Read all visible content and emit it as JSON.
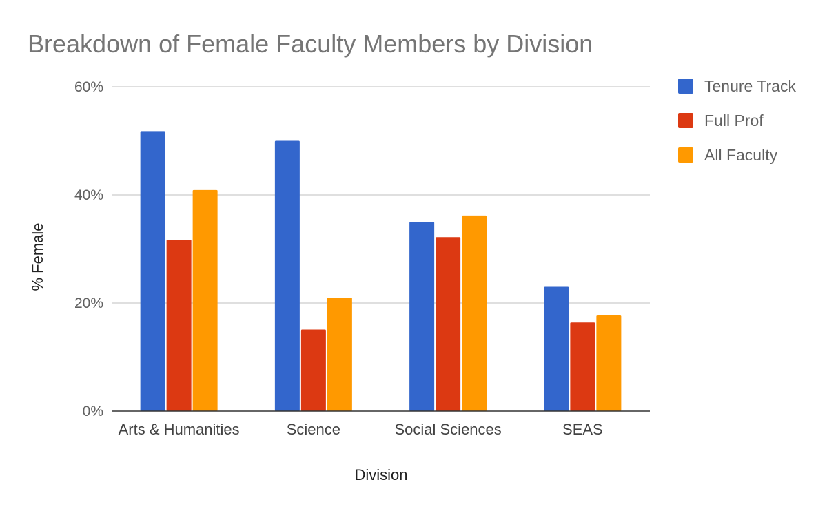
{
  "chart_data": {
    "type": "bar",
    "title": "Breakdown of Female Faculty Members by Division",
    "xlabel": "Division",
    "ylabel": "% Female",
    "categories": [
      "Arts & Humanities",
      "Science",
      "Social Sciences",
      "SEAS"
    ],
    "series": [
      {
        "name": "Tenure Track",
        "color": "#3366cc",
        "values": [
          51.8,
          50.0,
          35.0,
          23.0
        ]
      },
      {
        "name": "Full Prof",
        "color": "#dc3912",
        "values": [
          31.7,
          15.1,
          32.2,
          16.4
        ]
      },
      {
        "name": "All Faculty",
        "color": "#ff9900",
        "values": [
          40.9,
          21.0,
          36.2,
          17.7
        ]
      }
    ],
    "ylim": [
      0,
      60
    ],
    "yticks": [
      0,
      20,
      40,
      60
    ],
    "ytick_labels": [
      "0%",
      "20%",
      "40%",
      "60%"
    ],
    "grid": true,
    "legend_position": "right"
  }
}
